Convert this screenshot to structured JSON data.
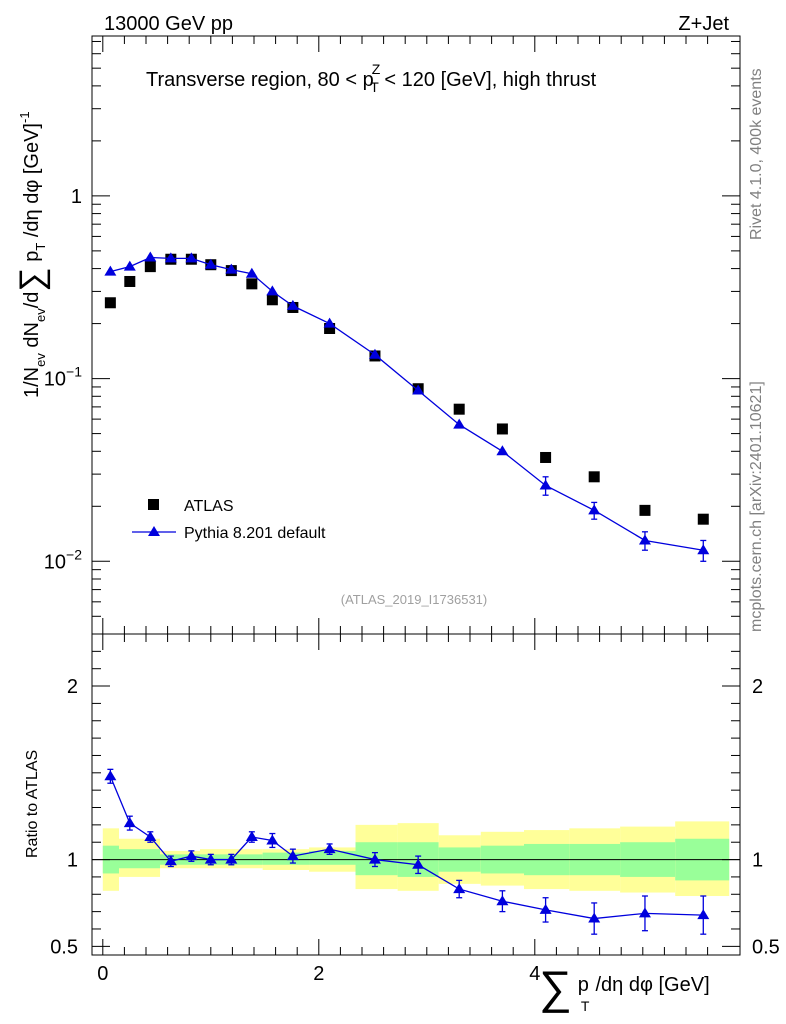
{
  "header": {
    "energy": "13000 GeV pp",
    "process": "Z+Jet"
  },
  "side_labels": {
    "rivet": "Rivet 4.1.0,  400k events",
    "mcplots": "mcplots.cern.ch [arXiv:2401.10621]"
  },
  "colors": {
    "mc": "#0000dd",
    "data": "#000000",
    "band_inner": "#99ff99",
    "band_outer": "#ffff99"
  },
  "chart_data": [
    {
      "type": "scatter",
      "title": "Transverse region, 80 < p_T^Z < 120 [GeV], high thrust",
      "title_parts": {
        "pre": "Transverse region, 80 < p",
        "sup": "Z",
        "sub": "T",
        "post": " < 120 [GeV], high thrust"
      },
      "analysis_id": "(ATLAS_2019_I1736531)",
      "yscale": "log",
      "ylim": [
        0.004,
        7.5
      ],
      "xlim": [
        -0.1,
        5.9
      ],
      "ylabel": "1/N_ev dN_ev/d Σ p_T /dη dφ [GeV]^-1",
      "ylabel_parts": {
        "a": "1/N",
        "a_sub": "ev",
        "b": " dN",
        "b_sub": "ev",
        "c": "/d",
        "sum": "∑",
        "d": " p",
        "d_sub": "T",
        "e": " /dη dφ  [GeV]",
        "e_sup": "-1"
      },
      "yticks": [
        {
          "value": 1,
          "label": "1"
        },
        {
          "value": 0.1,
          "label": "10",
          "sup": "−1"
        },
        {
          "value": 0.01,
          "label": "10",
          "sup": "−2"
        }
      ],
      "legend": [
        {
          "name": "ATLAS",
          "marker": "square"
        },
        {
          "name": "Pythia 8.201 default",
          "marker": "triangle"
        }
      ],
      "series": [
        {
          "name": "ATLAS",
          "x": [
            0.07,
            0.25,
            0.44,
            0.63,
            0.82,
            1.0,
            1.19,
            1.38,
            1.57,
            1.76,
            2.1,
            2.52,
            2.92,
            3.3,
            3.7,
            4.1,
            4.55,
            5.02,
            5.56
          ],
          "y": [
            0.26,
            0.34,
            0.41,
            0.45,
            0.45,
            0.42,
            0.39,
            0.33,
            0.27,
            0.245,
            0.188,
            0.133,
            0.088,
            0.068,
            0.053,
            0.037,
            0.029,
            0.019,
            0.017
          ]
        },
        {
          "name": "Pythia 8.201 default",
          "x": [
            0.07,
            0.25,
            0.44,
            0.63,
            0.82,
            1.0,
            1.19,
            1.38,
            1.57,
            1.76,
            2.1,
            2.52,
            2.92,
            3.3,
            3.7,
            4.1,
            4.55,
            5.02,
            5.56
          ],
          "y": [
            0.385,
            0.41,
            0.46,
            0.455,
            0.455,
            0.42,
            0.395,
            0.375,
            0.3,
            0.25,
            0.2,
            0.135,
            0.086,
            0.056,
            0.04,
            0.026,
            0.019,
            0.013,
            0.0115
          ],
          "yerr": [
            0.005,
            0.005,
            0.005,
            0.005,
            0.005,
            0.005,
            0.005,
            0.005,
            0.005,
            0.004,
            0.003,
            0.002,
            0.002,
            0.003,
            0.003,
            0.003,
            0.002,
            0.0015,
            0.0015
          ]
        }
      ]
    },
    {
      "type": "line",
      "ylabel": "Ratio to ATLAS",
      "ylim": [
        0.45,
        2.3
      ],
      "xlim": [
        -0.1,
        5.9
      ],
      "xlabel": "Σ p_T /dη dφ [GeV]",
      "xlabel_parts": {
        "sum": "∑",
        "p": "p",
        "sub": "T",
        "rest": "/dη dφ [GeV]"
      },
      "xticks": [
        {
          "value": 0,
          "label": "0"
        },
        {
          "value": 2,
          "label": "2"
        },
        {
          "value": 4,
          "label": "4"
        }
      ],
      "yticks": [
        {
          "value": 2,
          "label": "2"
        },
        {
          "value": 1,
          "label": "1"
        },
        {
          "value": 0.5,
          "label": "0.5"
        }
      ],
      "reference": 1,
      "bins": [
        {
          "lo": 0.0,
          "hi": 0.15,
          "in_lo": 0.92,
          "in_hi": 1.08,
          "out_lo": 0.82,
          "out_hi": 1.18
        },
        {
          "lo": 0.15,
          "hi": 0.53,
          "in_lo": 0.95,
          "in_hi": 1.06,
          "out_lo": 0.9,
          "out_hi": 1.12
        },
        {
          "lo": 0.53,
          "hi": 0.9,
          "in_lo": 0.97,
          "in_hi": 1.03,
          "out_lo": 0.95,
          "out_hi": 1.05
        },
        {
          "lo": 0.9,
          "hi": 1.48,
          "in_lo": 0.97,
          "in_hi": 1.03,
          "out_lo": 0.95,
          "out_hi": 1.06
        },
        {
          "lo": 1.48,
          "hi": 1.91,
          "in_lo": 0.97,
          "in_hi": 1.04,
          "out_lo": 0.94,
          "out_hi": 1.06
        },
        {
          "lo": 1.91,
          "hi": 2.34,
          "in_lo": 0.97,
          "in_hi": 1.05,
          "out_lo": 0.93,
          "out_hi": 1.07
        },
        {
          "lo": 2.34,
          "hi": 2.73,
          "in_lo": 0.91,
          "in_hi": 1.1,
          "out_lo": 0.83,
          "out_hi": 1.2
        },
        {
          "lo": 2.73,
          "hi": 3.11,
          "in_lo": 0.9,
          "in_hi": 1.1,
          "out_lo": 0.82,
          "out_hi": 1.21
        },
        {
          "lo": 3.11,
          "hi": 3.5,
          "in_lo": 0.93,
          "in_hi": 1.07,
          "out_lo": 0.86,
          "out_hi": 1.14
        },
        {
          "lo": 3.5,
          "hi": 3.9,
          "in_lo": 0.92,
          "in_hi": 1.08,
          "out_lo": 0.85,
          "out_hi": 1.16
        },
        {
          "lo": 3.9,
          "hi": 4.32,
          "in_lo": 0.91,
          "in_hi": 1.09,
          "out_lo": 0.83,
          "out_hi": 1.17
        },
        {
          "lo": 4.32,
          "hi": 4.79,
          "in_lo": 0.91,
          "in_hi": 1.09,
          "out_lo": 0.82,
          "out_hi": 1.18
        },
        {
          "lo": 4.79,
          "hi": 5.3,
          "in_lo": 0.9,
          "in_hi": 1.1,
          "out_lo": 0.81,
          "out_hi": 1.19
        },
        {
          "lo": 5.3,
          "hi": 5.8,
          "in_lo": 0.88,
          "in_hi": 1.12,
          "out_lo": 0.79,
          "out_hi": 1.22
        }
      ],
      "series": [
        {
          "name": "Pythia 8.201 default",
          "x": [
            0.07,
            0.25,
            0.44,
            0.63,
            0.82,
            1.0,
            1.19,
            1.38,
            1.57,
            1.76,
            2.1,
            2.52,
            2.92,
            3.3,
            3.7,
            4.1,
            4.55,
            5.02,
            5.56
          ],
          "y": [
            1.48,
            1.21,
            1.13,
            0.99,
            1.02,
            1.0,
            1.0,
            1.13,
            1.11,
            1.02,
            1.06,
            1.0,
            0.97,
            0.83,
            0.76,
            0.71,
            0.66,
            0.69,
            0.68
          ],
          "yerr": [
            0.04,
            0.04,
            0.03,
            0.03,
            0.03,
            0.03,
            0.03,
            0.03,
            0.04,
            0.04,
            0.03,
            0.04,
            0.05,
            0.05,
            0.06,
            0.07,
            0.09,
            0.1,
            0.11
          ]
        }
      ]
    }
  ]
}
